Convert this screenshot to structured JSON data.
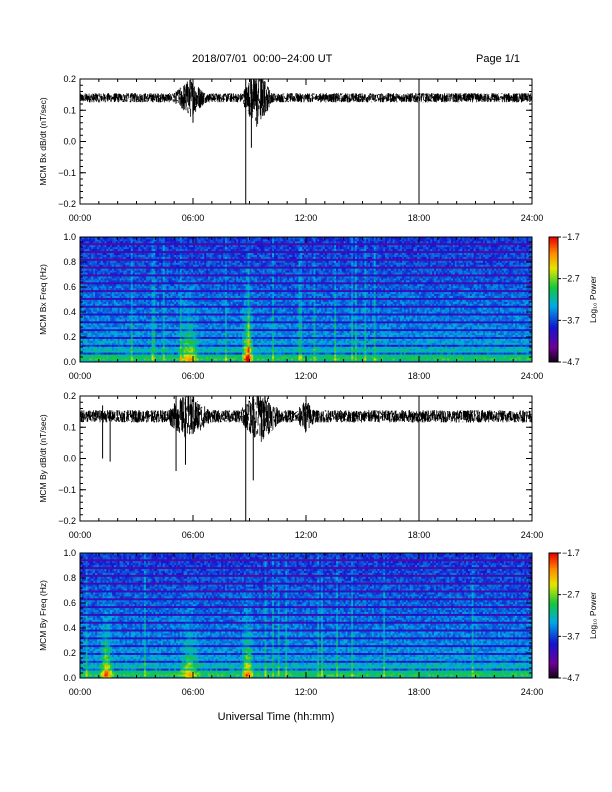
{
  "header": {
    "title": "2018/07/01  00:00−24:00 UT",
    "page": "Page 1/1"
  },
  "x_axis_label": "Universal Time (hh:mm)",
  "chart_data": [
    {
      "type": "line",
      "ylabel": "MCM Bx dB/dt (nT/sec)",
      "xlim": [
        0,
        24
      ],
      "ylim": [
        -0.2,
        0.2
      ],
      "x_ticks": [
        "00:00",
        "06:00",
        "12:00",
        "18:00",
        "24:00"
      ],
      "y_ticks": [
        "0.2",
        "0.1",
        "0.0",
        "−0.1",
        "−0.2"
      ],
      "baseline": 0.14,
      "noise_amplitude": 0.015,
      "bursts": [
        {
          "x_start": 5.0,
          "x_end": 6.7,
          "amplitude": 0.05
        },
        {
          "x_start": 8.6,
          "x_end": 10.2,
          "amplitude": 0.09
        }
      ],
      "spikes": [
        {
          "x": 6.0,
          "y_min": 0.06,
          "y_max": 0.18
        },
        {
          "x": 8.8,
          "y_min": -0.2,
          "y_max": 0.2
        },
        {
          "x": 9.1,
          "y_min": -0.02,
          "y_max": 0.2
        },
        {
          "x": 18.0,
          "y_min": -0.2,
          "y_max": 0.2
        }
      ]
    },
    {
      "type": "heatmap",
      "ylabel": "MCM Bx Freq (Hz)",
      "xlim": [
        0,
        24
      ],
      "ylim": [
        0,
        1.0
      ],
      "x_ticks": [
        "00:00",
        "06:00",
        "12:00",
        "18:00",
        "24:00"
      ],
      "y_ticks": [
        "1.0",
        "0.8",
        "0.6",
        "0.4",
        "0.2",
        "0.0"
      ],
      "colorbar": {
        "label": "Log₁₀ Power",
        "ticks": [
          "−1.7",
          "−2.7",
          "−3.7",
          "−4.7"
        ],
        "range": [
          -4.7,
          -1.7
        ]
      },
      "harmonic_spacing_hz": 0.0625,
      "events": [
        {
          "x": 5.8,
          "width": 0.6,
          "strength": 0.35
        },
        {
          "x": 8.9,
          "width": 0.35,
          "strength": 0.55
        }
      ]
    },
    {
      "type": "line",
      "ylabel": "MCM By dB/dt (nT/sec)",
      "xlim": [
        0,
        24
      ],
      "ylim": [
        -0.2,
        0.2
      ],
      "x_ticks": [
        "00:00",
        "06:00",
        "12:00",
        "18:00",
        "24:00"
      ],
      "y_ticks": [
        "0.2",
        "0.1",
        "0.0",
        "−0.1",
        "−0.2"
      ],
      "baseline": 0.135,
      "noise_amplitude": 0.02,
      "bursts": [
        {
          "x_start": 4.6,
          "x_end": 6.9,
          "amplitude": 0.06
        },
        {
          "x_start": 8.5,
          "x_end": 10.6,
          "amplitude": 0.07
        },
        {
          "x_start": 11.5,
          "x_end": 12.5,
          "amplitude": 0.035
        }
      ],
      "spikes": [
        {
          "x": 1.2,
          "y_min": 0.0,
          "y_max": 0.17
        },
        {
          "x": 1.6,
          "y_min": -0.01,
          "y_max": 0.15
        },
        {
          "x": 5.1,
          "y_min": -0.04,
          "y_max": 0.2
        },
        {
          "x": 5.6,
          "y_min": -0.02,
          "y_max": 0.19
        },
        {
          "x": 8.8,
          "y_min": -0.2,
          "y_max": 0.2
        },
        {
          "x": 9.2,
          "y_min": -0.07,
          "y_max": 0.2
        },
        {
          "x": 18.0,
          "y_min": -0.2,
          "y_max": 0.2
        }
      ]
    },
    {
      "type": "heatmap",
      "ylabel": "MCM By Freq (Hz)",
      "xlim": [
        0,
        24
      ],
      "ylim": [
        0,
        1.0
      ],
      "x_ticks": [
        "00:00",
        "06:00",
        "12:00",
        "18:00",
        "24:00"
      ],
      "y_ticks": [
        "1.0",
        "0.8",
        "0.6",
        "0.4",
        "0.2",
        "0.0"
      ],
      "colorbar": {
        "label": "Log₁₀ Power",
        "ticks": [
          "−1.7",
          "−2.7",
          "−3.7",
          "−4.7"
        ],
        "range": [
          -4.7,
          -1.7
        ]
      },
      "harmonic_spacing_hz": 0.0625,
      "events": [
        {
          "x": 1.4,
          "width": 0.4,
          "strength": 0.45
        },
        {
          "x": 5.8,
          "width": 0.6,
          "strength": 0.3
        },
        {
          "x": 8.9,
          "width": 0.35,
          "strength": 0.45
        }
      ]
    }
  ]
}
